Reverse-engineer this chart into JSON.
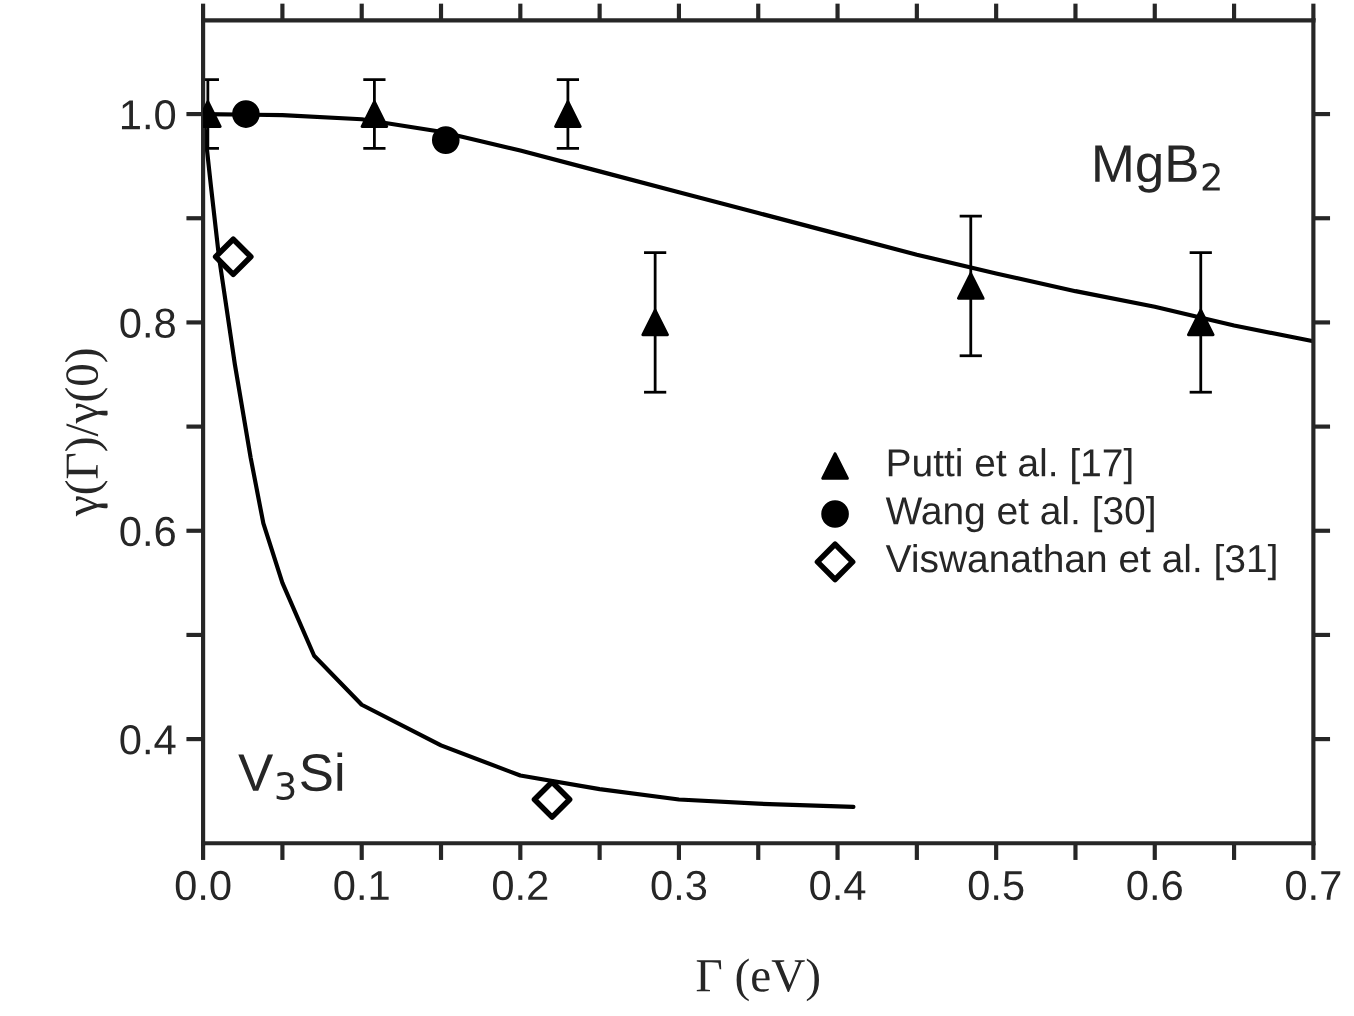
{
  "chart_data": {
    "type": "scatter",
    "xlabel": "Γ (eV)",
    "ylabel": "γ(Γ)/γ(0)",
    "xlim": [
      0,
      0.7
    ],
    "ylim": [
      0.3,
      1.09
    ],
    "xticks": [
      {
        "value": 0.0,
        "label": "0.0"
      },
      {
        "value": 0.05,
        "label": null
      },
      {
        "value": 0.1,
        "label": "0.1"
      },
      {
        "value": 0.15,
        "label": null
      },
      {
        "value": 0.2,
        "label": "0.2"
      },
      {
        "value": 0.25,
        "label": null
      },
      {
        "value": 0.3,
        "label": "0.3"
      },
      {
        "value": 0.35,
        "label": null
      },
      {
        "value": 0.4,
        "label": "0.4"
      },
      {
        "value": 0.45,
        "label": null
      },
      {
        "value": 0.5,
        "label": "0.5"
      },
      {
        "value": 0.55,
        "label": null
      },
      {
        "value": 0.6,
        "label": "0.6"
      },
      {
        "value": 0.65,
        "label": null
      },
      {
        "value": 0.7,
        "label": "0.7"
      }
    ],
    "yticks": [
      {
        "value": 0.4,
        "label": "0.4"
      },
      {
        "value": 0.5,
        "label": null
      },
      {
        "value": 0.6,
        "label": "0.6"
      },
      {
        "value": 0.7,
        "label": null
      },
      {
        "value": 0.8,
        "label": "0.8"
      },
      {
        "value": 0.9,
        "label": null
      },
      {
        "value": 1.0,
        "label": "1.0"
      }
    ],
    "grid": false,
    "legend": "center right",
    "annotations": [
      "MgB$_{2}$",
      "V$_{3}$Si"
    ],
    "series": [
      {
        "type": "line",
        "color": "#000000",
        "marker": "none",
        "line_style": "solid",
        "x": [
          0,
          0.05,
          0.1,
          0.15,
          0.2,
          0.25,
          0.3,
          0.35,
          0.4,
          0.45,
          0.5,
          0.55,
          0.6,
          0.65,
          0.7
        ],
        "values": [
          1.0,
          0.999,
          0.995,
          0.983,
          0.965,
          0.945,
          0.925,
          0.905,
          0.885,
          0.865,
          0.847,
          0.83,
          0.815,
          0.797,
          0.782
        ]
      },
      {
        "type": "line",
        "color": "#000000",
        "marker": "none",
        "line_style": "solid",
        "x": [
          0,
          0.005,
          0.01,
          0.02,
          0.03,
          0.038,
          0.05,
          0.07,
          0.1,
          0.15,
          0.2,
          0.25,
          0.3,
          0.35,
          0.41
        ],
        "values": [
          1.0,
          0.93,
          0.863,
          0.76,
          0.67,
          0.607,
          0.55,
          0.48,
          0.433,
          0.394,
          0.365,
          0.352,
          0.342,
          0.338,
          0.335
        ]
      },
      {
        "name": "Putti et al. [17]",
        "color": "#000000",
        "marker": "triangle",
        "x": [
          0.003,
          0.108,
          0.23,
          0.285,
          0.484,
          0.629
        ],
        "values": [
          1.0,
          1.0,
          1.0,
          0.8,
          0.835,
          0.8
        ],
        "errors": [
          0.033,
          0.033,
          0.033,
          0.067,
          0.067,
          0.067
        ]
      },
      {
        "name": "Wang et al. [30]",
        "color": "#000000",
        "marker": "circle",
        "x": [
          0.027,
          0.153
        ],
        "values": [
          1.0,
          0.975
        ]
      },
      {
        "name": "Viswanathan et al. [31]",
        "color": "#000000",
        "marker": "diamond",
        "x": [
          0.019,
          0.22
        ],
        "values": [
          0.863,
          0.342
        ]
      }
    ]
  }
}
